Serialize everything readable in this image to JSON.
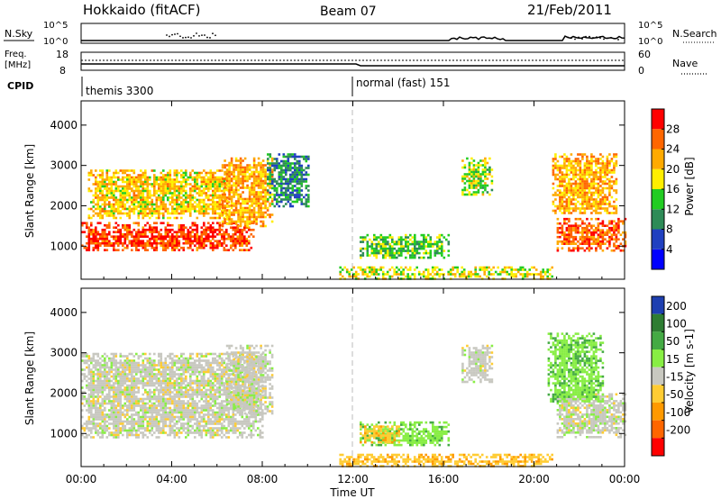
{
  "header": {
    "station": "Hokkaido (fitACF)",
    "beam": "Beam 07",
    "date": "21/Feb/2011"
  },
  "noise_panel": {
    "left_label": "N.Sky",
    "right_label": "N.Search",
    "tick_top": "10^5",
    "tick_bottom": "10^0"
  },
  "freq_panel": {
    "left_label_1": "Freq.",
    "left_label_2": "[MHz]",
    "left_tick_top": "18",
    "left_tick_bottom": "8",
    "right_label": "Nave",
    "right_tick_top": "60",
    "right_tick_bottom": "0"
  },
  "cpid_panel": {
    "label": "CPID",
    "segments": [
      {
        "start_hour": 0,
        "text": "themis 3300"
      },
      {
        "start_hour": 12,
        "text": "normal (fast) 151"
      }
    ]
  },
  "x_axis": {
    "label": "Time UT",
    "ticks": [
      "00:00",
      "04:00",
      "08:00",
      "12:00",
      "16:00",
      "20:00",
      "00:00"
    ],
    "range_hours": [
      0,
      24
    ]
  },
  "colors": {
    "power_scale": [
      "#0000ff",
      "#2040c0",
      "#2e8b57",
      "#22cc22",
      "#ffee00",
      "#ffaa00",
      "#ff6600",
      "#ff0000"
    ],
    "velocity_scale": [
      "#ff0000",
      "#ff6600",
      "#ff9900",
      "#ffcc33",
      "#c8c8c0",
      "#88ee44",
      "#44aa44",
      "#2e7d32",
      "#1e3fb0"
    ]
  },
  "chart_data": [
    {
      "type": "heatmap",
      "name": "power",
      "ylabel": "Slant Range [km]",
      "xlabel": "",
      "xlim": [
        0,
        24
      ],
      "ylim": [
        180,
        4600
      ],
      "yticks": [
        "1000",
        "2000",
        "3000",
        "4000"
      ],
      "colorbar": {
        "label": "Power [dB]",
        "range": [
          0,
          32
        ],
        "ticks": [
          "4",
          "8",
          "12",
          "16",
          "20",
          "24",
          "28"
        ]
      },
      "regions": [
        {
          "start": 0.0,
          "end": 7.6,
          "low": 900,
          "high": 1600,
          "level": 28
        },
        {
          "start": 0.3,
          "end": 6.5,
          "low": 1700,
          "high": 2900,
          "level": 20
        },
        {
          "start": 6.2,
          "end": 8.4,
          "low": 1500,
          "high": 3200,
          "level": 22
        },
        {
          "start": 8.2,
          "end": 10.0,
          "low": 2000,
          "high": 3300,
          "level": 10
        },
        {
          "start": 12.3,
          "end": 16.2,
          "low": 700,
          "high": 1300,
          "level": 14
        },
        {
          "start": 16.8,
          "end": 18.1,
          "low": 2300,
          "high": 3200,
          "level": 16
        },
        {
          "start": 21.0,
          "end": 24.0,
          "low": 900,
          "high": 1700,
          "level": 26
        },
        {
          "start": 20.8,
          "end": 23.6,
          "low": 1800,
          "high": 3300,
          "level": 22
        },
        {
          "start": 11.4,
          "end": 20.8,
          "low": 180,
          "high": 500,
          "level": 18
        }
      ]
    },
    {
      "type": "heatmap",
      "name": "velocity",
      "ylabel": "Slant Range [km]",
      "xlabel": "Time UT",
      "xlim": [
        0,
        24
      ],
      "ylim": [
        180,
        4600
      ],
      "yticks": [
        "1000",
        "2000",
        "3000",
        "4000"
      ],
      "colorbar": {
        "label": "Velocity [m s-1]",
        "ticks": [
          "200",
          "100",
          "50",
          "15",
          "-15",
          "-50",
          "-100",
          "-200"
        ]
      },
      "regions": [
        {
          "start": 0.0,
          "end": 8.0,
          "low": 900,
          "high": 3000,
          "value": 0
        },
        {
          "start": 6.4,
          "end": 8.4,
          "low": 1500,
          "high": 3200,
          "value": 0
        },
        {
          "start": 12.3,
          "end": 16.2,
          "low": 700,
          "high": 1300,
          "value": 40
        },
        {
          "start": 12.3,
          "end": 14.0,
          "low": 800,
          "high": 1200,
          "value": -40
        },
        {
          "start": 16.8,
          "end": 18.1,
          "low": 2300,
          "high": 3200,
          "value": 0
        },
        {
          "start": 21.0,
          "end": 24.0,
          "low": 900,
          "high": 2000,
          "value": 0
        },
        {
          "start": 20.6,
          "end": 23.0,
          "low": 1800,
          "high": 3500,
          "value": 40
        },
        {
          "start": 11.4,
          "end": 20.8,
          "low": 180,
          "high": 500,
          "value": -40
        }
      ]
    }
  ]
}
